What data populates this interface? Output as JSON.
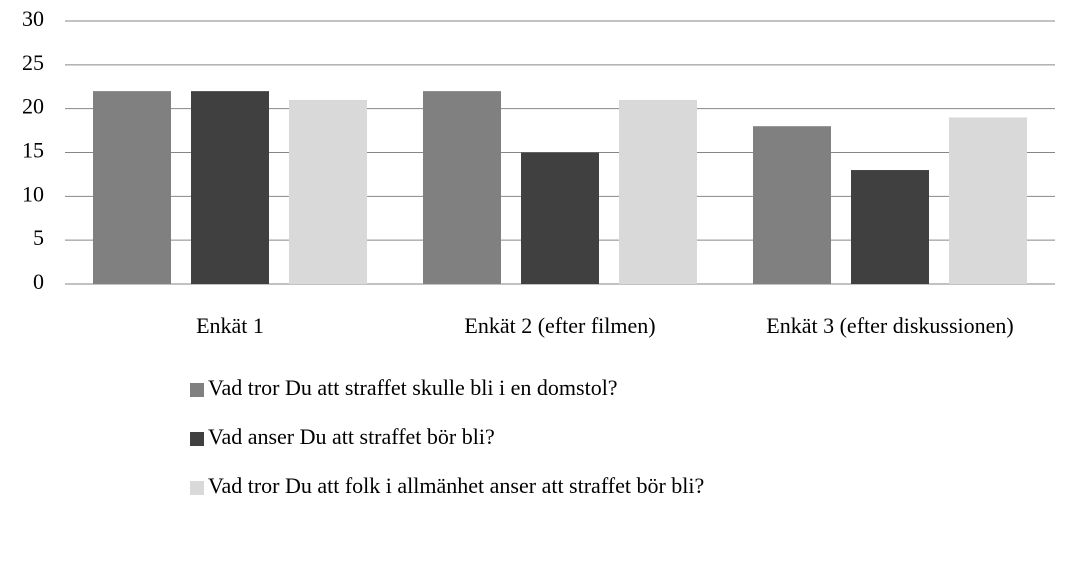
{
  "chart_data": {
    "type": "bar",
    "categories": [
      "Enkät 1",
      "Enkät 2 (efter filmen)",
      "Enkät 3 (efter diskussionen)"
    ],
    "series": [
      {
        "name": "Vad tror Du att straffet skulle bli i en domstol?",
        "color": "#808080",
        "values": [
          22,
          22,
          18
        ]
      },
      {
        "name": "Vad anser Du att straffet bör bli?",
        "color": "#404040",
        "values": [
          22,
          15,
          13
        ]
      },
      {
        "name": "Vad tror Du att folk i allmänhet anser att straffet bör bli?",
        "color": "#d9d9d9",
        "values": [
          21,
          21,
          19
        ]
      }
    ],
    "ylim": [
      0,
      30
    ],
    "yticks": [
      0,
      5,
      10,
      15,
      20,
      25,
      30
    ],
    "grid": true,
    "legend": "bottom"
  }
}
